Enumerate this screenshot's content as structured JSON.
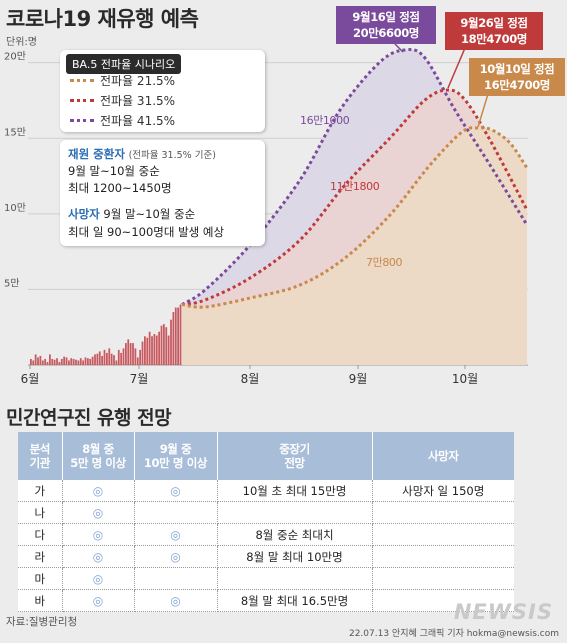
{
  "title": "코로나19 재유행 예측",
  "unit_label": "단위:명",
  "chart_data": {
    "type": "line",
    "y_tick_labels": [
      "20만",
      "15만",
      "10만",
      "5만"
    ],
    "y_ticks": [
      200000,
      150000,
      100000,
      50000
    ],
    "ylim": [
      0,
      215000
    ],
    "x_tick_labels": [
      "6월",
      "7월",
      "8월",
      "9월",
      "10월"
    ],
    "bars_color": "#c7595f",
    "bars": [
      4000,
      3000,
      7000,
      5000,
      6000,
      3000,
      4000,
      2000,
      7000,
      4000,
      3500,
      4500,
      2000,
      4000,
      5500,
      5000,
      3000,
      4500,
      4000,
      3500,
      3000,
      4500,
      3000,
      5000,
      4500,
      4000,
      5500,
      7000,
      7500,
      9000,
      6000,
      10000,
      8000,
      11000,
      7500,
      6500,
      3000,
      10000,
      8000,
      11000,
      14500,
      17000,
      14500,
      14500,
      11000,
      5000,
      10000,
      15500,
      19000,
      18000,
      22000,
      19000,
      20500,
      19500,
      22000,
      26000,
      27000,
      25000,
      19500,
      30000,
      35000,
      38000,
      38000,
      40000
    ],
    "series": [
      {
        "name": "전파율 21.5%",
        "color": "#c8894a",
        "peak_label": "10월10일 정점",
        "peak_value_label": "16만4700명",
        "mid_label": "7만800"
      },
      {
        "name": "전파율 31.5%",
        "color": "#bf3a3a",
        "peak_label": "9월26일 정점",
        "peak_value_label": "18만4700명",
        "mid_label": "11만1800"
      },
      {
        "name": "전파율 41.5%",
        "color": "#7a4a9c",
        "peak_label": "9월16일 정점",
        "peak_value_label": "20만6600명",
        "mid_label": "16만1000"
      }
    ],
    "legend_title": "BA.5 전파율 시나리오"
  },
  "info": {
    "severe_title": "재원 중환자",
    "severe_note": "(전파율 31.5% 기준)",
    "severe_line1": "9월 말~10월 중순",
    "severe_line2": "최대 1200~1450명",
    "death_title": "사망자",
    "death_line1": "9월 말~10월 중순",
    "death_line2": "최대 일 90~100명대 발생 예상"
  },
  "section2_title": "민간연구진 유행 전망",
  "table": {
    "headers": [
      [
        "분석",
        "기관"
      ],
      [
        "8월 중",
        "5만 명 이상"
      ],
      [
        "9월 중",
        "10만 명 이상"
      ],
      [
        "중장기",
        "전망"
      ],
      [
        "사망자"
      ]
    ],
    "rows": [
      {
        "org": "가",
        "aug": "◎",
        "sep": "◎",
        "outlook": "10월 초 최대 15만명",
        "death": "사망자 일 150명"
      },
      {
        "org": "나",
        "aug": "◎",
        "sep": "",
        "outlook": "",
        "death": ""
      },
      {
        "org": "다",
        "aug": "◎",
        "sep": "◎",
        "outlook": "8월 중순 최대치",
        "death": ""
      },
      {
        "org": "라",
        "aug": "◎",
        "sep": "◎",
        "outlook": "8월 말 최대 10만명",
        "death": ""
      },
      {
        "org": "마",
        "aug": "◎",
        "sep": "",
        "outlook": "",
        "death": ""
      },
      {
        "org": "바",
        "aug": "◎",
        "sep": "◎",
        "outlook": "8월 말 최대 16.5만명",
        "death": ""
      }
    ]
  },
  "source": "자료:질병관리청",
  "credit": "22.07.13 안지혜 그래픽 기자 hokma@newsis.com",
  "watermark": "NEWSIS"
}
